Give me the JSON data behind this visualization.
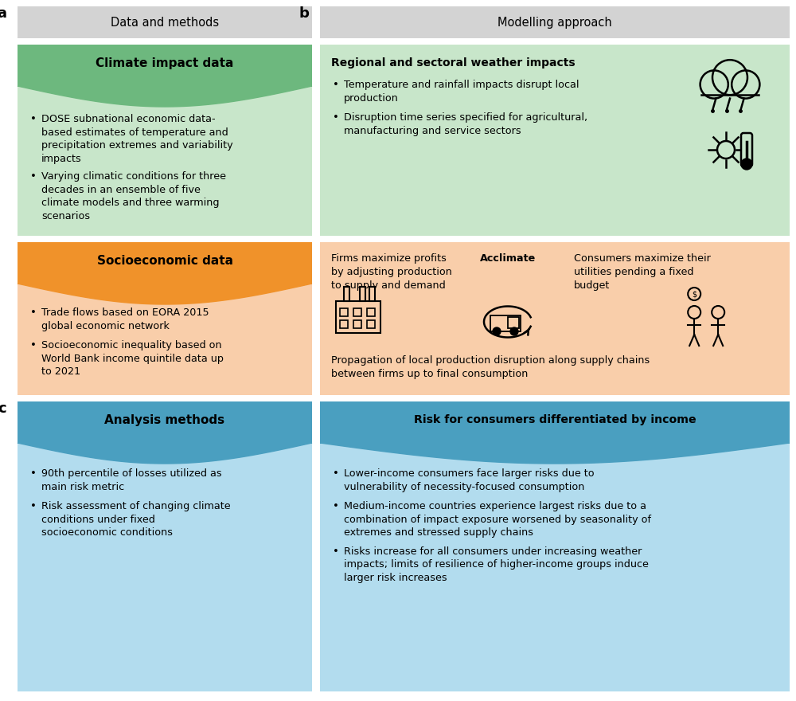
{
  "panel_a_title": "Data and methods",
  "panel_b_title": "Modelling approach",
  "green_header_a": "Climate impact data",
  "green_bullets_a": [
    "DOSE subnational economic data-\nbased estimates of temperature and\nprecipitation extremes and variability\nimpacts",
    "Varying climatic conditions for three\ndecades in an ensemble of five\nclimate models and three warming\nscenarios"
  ],
  "green_header_b": "Regional and sectoral weather impacts",
  "green_bullets_b": [
    "Temperature and rainfall impacts disrupt local\nproduction",
    "Disruption time series specified for agricultural,\nmanufacturing and service sectors"
  ],
  "orange_header_a": "Socioeconomic data",
  "orange_bullets_a": [
    "Trade flows based on EORA 2015\nglobal economic network",
    "Socioeconomic inequality based on\nWorld Bank income quintile data up\nto 2021"
  ],
  "orange_text_firms": "Firms maximize profits\nby adjusting production\nto supply and demand",
  "orange_text_acclimate": "Acclimate",
  "orange_text_consumers": "Consumers maximize their\nutilities pending a fixed\nbudget",
  "orange_text_bottom": "Propagation of local production disruption along supply chains\nbetween firms up to final consumption",
  "blue_header_left": "Analysis methods",
  "blue_bullets_left": [
    "90th percentile of losses utilized as\nmain risk metric",
    "Risk assessment of changing climate\nconditions under fixed\nsocioeconomic conditions"
  ],
  "blue_header_right": "Risk for consumers differentiated by income",
  "blue_bullets_right": [
    "Lower-income consumers face larger risks due to\nvulnerability of necessity-focused consumption",
    "Medium-income countries experience largest risks due to a\ncombination of impact exposure worsened by seasonality of\nextremes and stressed supply chains",
    "Risks increase for all consumers under increasing weather\nimpacts; limits of resilience of higher-income groups induce\nlarger risk increases"
  ],
  "color_green_dark": "#6db87e",
  "color_green_light": "#c8e6ca",
  "color_orange_dark": "#f0922a",
  "color_orange_light": "#f9ceaa",
  "color_blue_dark": "#4a9fc0",
  "color_blue_light": "#b2dcee",
  "color_gray": "#d3d3d3",
  "color_white": "#ffffff",
  "color_black": "#1a1a1a"
}
